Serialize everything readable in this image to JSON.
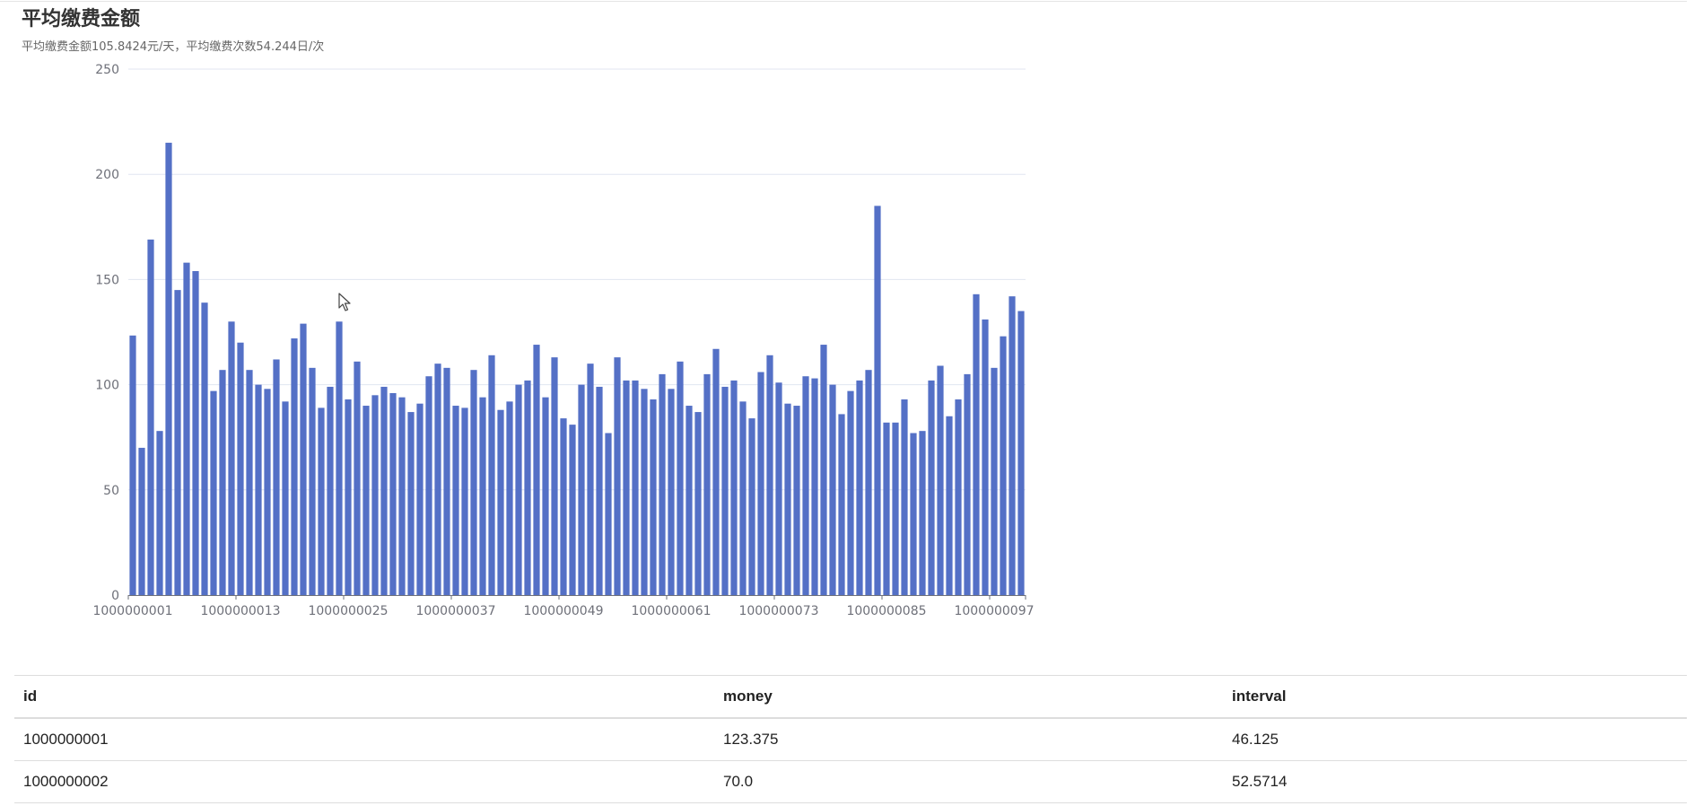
{
  "header": {
    "title": "平均缴费金额",
    "subtitle": "平均缴费金额105.8424元/天，平均缴费次数54.244日/次"
  },
  "colors": {
    "bar": "#5470c6",
    "axis": "#6e7079",
    "grid": "#e0e6f1"
  },
  "chart_data": {
    "type": "bar",
    "title": "平均缴费金额",
    "subtitle": "平均缴费金额105.8424元/天，平均缴费次数54.244日/次",
    "xlabel": "",
    "ylabel": "",
    "ylim": [
      0,
      250
    ],
    "yticks": [
      0,
      50,
      100,
      150,
      200,
      250
    ],
    "grid": true,
    "x_ticks": [
      "1000000001",
      "1000000013",
      "1000000025",
      "1000000037",
      "1000000049",
      "1000000061",
      "1000000073",
      "1000000085",
      "1000000097"
    ],
    "categories": [
      "1000000001",
      "1000000002",
      "1000000003",
      "1000000004",
      "1000000005",
      "1000000006",
      "1000000007",
      "1000000008",
      "1000000009",
      "1000000010",
      "1000000011",
      "1000000012",
      "1000000013",
      "1000000014",
      "1000000015",
      "1000000016",
      "1000000017",
      "1000000018",
      "1000000019",
      "1000000020",
      "1000000021",
      "1000000022",
      "1000000023",
      "1000000024",
      "1000000025",
      "1000000026",
      "1000000027",
      "1000000028",
      "1000000029",
      "1000000030",
      "1000000031",
      "1000000032",
      "1000000033",
      "1000000034",
      "1000000035",
      "1000000036",
      "1000000037",
      "1000000038",
      "1000000039",
      "1000000040",
      "1000000041",
      "1000000042",
      "1000000043",
      "1000000044",
      "1000000045",
      "1000000046",
      "1000000047",
      "1000000048",
      "1000000049",
      "1000000050",
      "1000000051",
      "1000000052",
      "1000000053",
      "1000000054",
      "1000000055",
      "1000000056",
      "1000000057",
      "1000000058",
      "1000000059",
      "1000000060",
      "1000000061",
      "1000000062",
      "1000000063",
      "1000000064",
      "1000000065",
      "1000000066",
      "1000000067",
      "1000000068",
      "1000000069",
      "1000000070",
      "1000000071",
      "1000000072",
      "1000000073",
      "1000000074",
      "1000000075",
      "1000000076",
      "1000000077",
      "1000000078",
      "1000000079",
      "1000000080",
      "1000000081",
      "1000000082",
      "1000000083",
      "1000000084",
      "1000000085",
      "1000000086",
      "1000000087",
      "1000000088",
      "1000000089",
      "1000000090",
      "1000000091",
      "1000000092",
      "1000000093",
      "1000000094",
      "1000000095",
      "1000000096",
      "1000000097",
      "1000000098",
      "1000000099",
      "1000000100"
    ],
    "values": [
      123.375,
      70.0,
      169,
      78,
      215,
      145,
      158,
      154,
      139,
      97,
      107,
      130,
      120,
      107,
      100,
      98,
      112,
      92,
      122,
      129,
      108,
      89,
      99,
      130,
      93,
      111,
      90,
      95,
      99,
      96,
      94,
      87,
      91,
      104,
      110,
      108,
      90,
      89,
      107,
      94,
      114,
      88,
      92,
      100,
      102,
      119,
      94,
      113,
      84,
      81,
      100,
      110,
      99,
      77,
      113,
      102,
      102,
      98,
      93,
      105,
      98,
      111,
      90,
      87,
      105,
      117,
      99,
      102,
      92,
      84,
      106,
      114,
      101,
      91,
      90,
      104,
      103,
      119,
      100,
      86,
      97,
      102,
      107,
      185,
      82,
      82,
      93,
      77,
      78,
      102,
      109,
      85,
      93,
      105,
      143,
      131,
      108,
      123,
      142,
      135
    ]
  },
  "table": {
    "columns": [
      "id",
      "money",
      "interval"
    ],
    "rows": [
      [
        "1000000001",
        "123.375",
        "46.125"
      ],
      [
        "1000000002",
        "70.0",
        "52.5714"
      ]
    ]
  }
}
